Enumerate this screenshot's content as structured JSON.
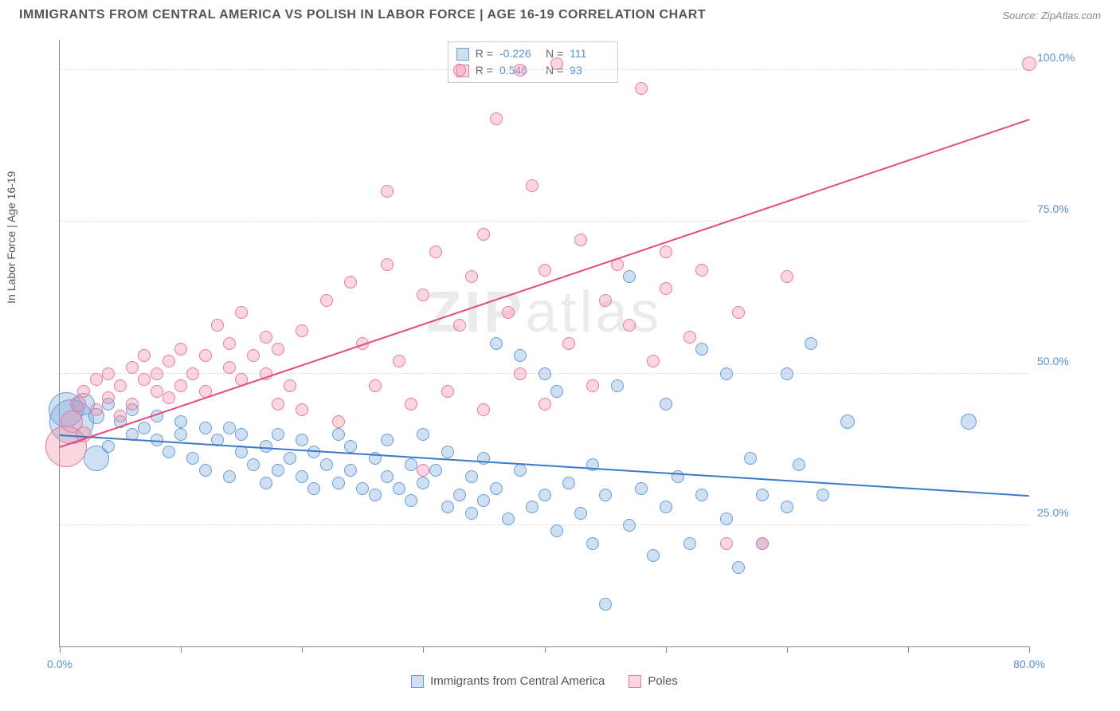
{
  "title": "IMMIGRANTS FROM CENTRAL AMERICA VS POLISH IN LABOR FORCE | AGE 16-19 CORRELATION CHART",
  "source": "Source: ZipAtlas.com",
  "watermark_prefix": "ZIP",
  "watermark_suffix": "atlas",
  "chart": {
    "type": "scatter",
    "ylabel": "In Labor Force | Age 16-19",
    "xlim": [
      0,
      80
    ],
    "ylim": [
      5,
      105
    ],
    "x_ticks": [
      0,
      10,
      20,
      30,
      40,
      50,
      60,
      70,
      80
    ],
    "x_tick_labels": {
      "0": "0.0%",
      "80": "80.0%"
    },
    "y_ticks": [
      25,
      50,
      75,
      100
    ],
    "y_tick_labels": [
      "25.0%",
      "50.0%",
      "75.0%",
      "100.0%"
    ],
    "grid_color": "#dddddd",
    "axis_color": "#888888",
    "background_color": "#ffffff",
    "series": [
      {
        "name": "Immigrants from Central America",
        "fill": "rgba(120,165,220,0.35)",
        "stroke": "#6a9bd8",
        "trend_color": "#3b78c9",
        "stats": {
          "R": "-0.226",
          "N": "111"
        },
        "trend": {
          "x1": 0,
          "y1": 40,
          "x2": 80,
          "y2": 30
        },
        "points": [
          {
            "x": 0.5,
            "y": 44,
            "r": 22
          },
          {
            "x": 1,
            "y": 42,
            "r": 28
          },
          {
            "x": 2,
            "y": 45,
            "r": 14
          },
          {
            "x": 3,
            "y": 36,
            "r": 16
          },
          {
            "x": 3,
            "y": 43,
            "r": 10
          },
          {
            "x": 4,
            "y": 45,
            "r": 8
          },
          {
            "x": 4,
            "y": 38,
            "r": 8
          },
          {
            "x": 5,
            "y": 42,
            "r": 8
          },
          {
            "x": 6,
            "y": 40,
            "r": 8
          },
          {
            "x": 6,
            "y": 44,
            "r": 8
          },
          {
            "x": 7,
            "y": 41,
            "r": 8
          },
          {
            "x": 8,
            "y": 39,
            "r": 8
          },
          {
            "x": 8,
            "y": 43,
            "r": 8
          },
          {
            "x": 9,
            "y": 37,
            "r": 8
          },
          {
            "x": 10,
            "y": 40,
            "r": 8
          },
          {
            "x": 10,
            "y": 42,
            "r": 8
          },
          {
            "x": 11,
            "y": 36,
            "r": 8
          },
          {
            "x": 12,
            "y": 41,
            "r": 8
          },
          {
            "x": 12,
            "y": 34,
            "r": 8
          },
          {
            "x": 13,
            "y": 39,
            "r": 8
          },
          {
            "x": 14,
            "y": 41,
            "r": 8
          },
          {
            "x": 14,
            "y": 33,
            "r": 8
          },
          {
            "x": 15,
            "y": 37,
            "r": 8
          },
          {
            "x": 15,
            "y": 40,
            "r": 8
          },
          {
            "x": 16,
            "y": 35,
            "r": 8
          },
          {
            "x": 17,
            "y": 38,
            "r": 8
          },
          {
            "x": 17,
            "y": 32,
            "r": 8
          },
          {
            "x": 18,
            "y": 40,
            "r": 8
          },
          {
            "x": 18,
            "y": 34,
            "r": 8
          },
          {
            "x": 19,
            "y": 36,
            "r": 8
          },
          {
            "x": 20,
            "y": 39,
            "r": 8
          },
          {
            "x": 20,
            "y": 33,
            "r": 8
          },
          {
            "x": 21,
            "y": 37,
            "r": 8
          },
          {
            "x": 21,
            "y": 31,
            "r": 8
          },
          {
            "x": 22,
            "y": 35,
            "r": 8
          },
          {
            "x": 23,
            "y": 40,
            "r": 8
          },
          {
            "x": 23,
            "y": 32,
            "r": 8
          },
          {
            "x": 24,
            "y": 34,
            "r": 8
          },
          {
            "x": 24,
            "y": 38,
            "r": 8
          },
          {
            "x": 25,
            "y": 31,
            "r": 8
          },
          {
            "x": 26,
            "y": 36,
            "r": 8
          },
          {
            "x": 26,
            "y": 30,
            "r": 8
          },
          {
            "x": 27,
            "y": 33,
            "r": 8
          },
          {
            "x": 27,
            "y": 39,
            "r": 8
          },
          {
            "x": 28,
            "y": 31,
            "r": 8
          },
          {
            "x": 29,
            "y": 35,
            "r": 8
          },
          {
            "x": 29,
            "y": 29,
            "r": 8
          },
          {
            "x": 30,
            "y": 40,
            "r": 8
          },
          {
            "x": 30,
            "y": 32,
            "r": 8
          },
          {
            "x": 31,
            "y": 34,
            "r": 8
          },
          {
            "x": 32,
            "y": 28,
            "r": 8
          },
          {
            "x": 32,
            "y": 37,
            "r": 8
          },
          {
            "x": 33,
            "y": 30,
            "r": 8
          },
          {
            "x": 34,
            "y": 33,
            "r": 8
          },
          {
            "x": 34,
            "y": 27,
            "r": 8
          },
          {
            "x": 35,
            "y": 36,
            "r": 8
          },
          {
            "x": 35,
            "y": 29,
            "r": 8
          },
          {
            "x": 36,
            "y": 55,
            "r": 8
          },
          {
            "x": 36,
            "y": 31,
            "r": 8
          },
          {
            "x": 37,
            "y": 26,
            "r": 8
          },
          {
            "x": 38,
            "y": 34,
            "r": 8
          },
          {
            "x": 38,
            "y": 53,
            "r": 8
          },
          {
            "x": 39,
            "y": 28,
            "r": 8
          },
          {
            "x": 40,
            "y": 30,
            "r": 8
          },
          {
            "x": 40,
            "y": 50,
            "r": 8
          },
          {
            "x": 41,
            "y": 24,
            "r": 8
          },
          {
            "x": 41,
            "y": 47,
            "r": 8
          },
          {
            "x": 42,
            "y": 32,
            "r": 8
          },
          {
            "x": 43,
            "y": 27,
            "r": 8
          },
          {
            "x": 44,
            "y": 35,
            "r": 8
          },
          {
            "x": 44,
            "y": 22,
            "r": 8
          },
          {
            "x": 45,
            "y": 30,
            "r": 8
          },
          {
            "x": 45,
            "y": 12,
            "r": 8
          },
          {
            "x": 46,
            "y": 48,
            "r": 8
          },
          {
            "x": 47,
            "y": 25,
            "r": 8
          },
          {
            "x": 47,
            "y": 66,
            "r": 8
          },
          {
            "x": 48,
            "y": 31,
            "r": 8
          },
          {
            "x": 49,
            "y": 20,
            "r": 8
          },
          {
            "x": 50,
            "y": 28,
            "r": 8
          },
          {
            "x": 50,
            "y": 45,
            "r": 8
          },
          {
            "x": 51,
            "y": 33,
            "r": 8
          },
          {
            "x": 52,
            "y": 22,
            "r": 8
          },
          {
            "x": 53,
            "y": 30,
            "r": 8
          },
          {
            "x": 53,
            "y": 54,
            "r": 8
          },
          {
            "x": 55,
            "y": 50,
            "r": 8
          },
          {
            "x": 55,
            "y": 26,
            "r": 8
          },
          {
            "x": 56,
            "y": 18,
            "r": 8
          },
          {
            "x": 57,
            "y": 36,
            "r": 8
          },
          {
            "x": 58,
            "y": 30,
            "r": 8
          },
          {
            "x": 58,
            "y": 22,
            "r": 8
          },
          {
            "x": 60,
            "y": 28,
            "r": 8
          },
          {
            "x": 60,
            "y": 50,
            "r": 8
          },
          {
            "x": 61,
            "y": 35,
            "r": 8
          },
          {
            "x": 62,
            "y": 55,
            "r": 8
          },
          {
            "x": 63,
            "y": 30,
            "r": 8
          },
          {
            "x": 65,
            "y": 42,
            "r": 9
          },
          {
            "x": 75,
            "y": 42,
            "r": 10
          }
        ]
      },
      {
        "name": "Poles",
        "fill": "rgba(240,140,165,0.35)",
        "stroke": "#e87a9a",
        "trend_color": "#e64b7a",
        "stats": {
          "R": "0.546",
          "N": "93"
        },
        "trend": {
          "x1": 0,
          "y1": 38,
          "x2": 80,
          "y2": 92
        },
        "points": [
          {
            "x": 0.5,
            "y": 38,
            "r": 26
          },
          {
            "x": 1,
            "y": 42,
            "r": 14
          },
          {
            "x": 1.5,
            "y": 45,
            "r": 10
          },
          {
            "x": 2,
            "y": 40,
            "r": 10
          },
          {
            "x": 2,
            "y": 47,
            "r": 8
          },
          {
            "x": 3,
            "y": 44,
            "r": 8
          },
          {
            "x": 3,
            "y": 49,
            "r": 8
          },
          {
            "x": 4,
            "y": 46,
            "r": 8
          },
          {
            "x": 4,
            "y": 50,
            "r": 8
          },
          {
            "x": 5,
            "y": 43,
            "r": 8
          },
          {
            "x": 5,
            "y": 48,
            "r": 8
          },
          {
            "x": 6,
            "y": 51,
            "r": 8
          },
          {
            "x": 6,
            "y": 45,
            "r": 8
          },
          {
            "x": 7,
            "y": 49,
            "r": 8
          },
          {
            "x": 7,
            "y": 53,
            "r": 8
          },
          {
            "x": 8,
            "y": 47,
            "r": 8
          },
          {
            "x": 8,
            "y": 50,
            "r": 8
          },
          {
            "x": 9,
            "y": 52,
            "r": 8
          },
          {
            "x": 9,
            "y": 46,
            "r": 8
          },
          {
            "x": 10,
            "y": 48,
            "r": 8
          },
          {
            "x": 10,
            "y": 54,
            "r": 8
          },
          {
            "x": 11,
            "y": 50,
            "r": 8
          },
          {
            "x": 12,
            "y": 53,
            "r": 8
          },
          {
            "x": 12,
            "y": 47,
            "r": 8
          },
          {
            "x": 13,
            "y": 58,
            "r": 8
          },
          {
            "x": 14,
            "y": 51,
            "r": 8
          },
          {
            "x": 14,
            "y": 55,
            "r": 8
          },
          {
            "x": 15,
            "y": 49,
            "r": 8
          },
          {
            "x": 15,
            "y": 60,
            "r": 8
          },
          {
            "x": 16,
            "y": 53,
            "r": 8
          },
          {
            "x": 17,
            "y": 56,
            "r": 8
          },
          {
            "x": 17,
            "y": 50,
            "r": 8
          },
          {
            "x": 18,
            "y": 45,
            "r": 8
          },
          {
            "x": 18,
            "y": 54,
            "r": 8
          },
          {
            "x": 19,
            "y": 48,
            "r": 8
          },
          {
            "x": 20,
            "y": 57,
            "r": 8
          },
          {
            "x": 20,
            "y": 44,
            "r": 8
          },
          {
            "x": 22,
            "y": 62,
            "r": 8
          },
          {
            "x": 23,
            "y": 42,
            "r": 8
          },
          {
            "x": 24,
            "y": 65,
            "r": 8
          },
          {
            "x": 25,
            "y": 55,
            "r": 8
          },
          {
            "x": 26,
            "y": 48,
            "r": 8
          },
          {
            "x": 27,
            "y": 68,
            "r": 8
          },
          {
            "x": 27,
            "y": 80,
            "r": 8
          },
          {
            "x": 28,
            "y": 52,
            "r": 8
          },
          {
            "x": 29,
            "y": 45,
            "r": 8
          },
          {
            "x": 30,
            "y": 63,
            "r": 8
          },
          {
            "x": 30,
            "y": 34,
            "r": 8
          },
          {
            "x": 31,
            "y": 70,
            "r": 8
          },
          {
            "x": 32,
            "y": 47,
            "r": 8
          },
          {
            "x": 33,
            "y": 58,
            "r": 8
          },
          {
            "x": 33,
            "y": 100,
            "r": 8
          },
          {
            "x": 34,
            "y": 66,
            "r": 8
          },
          {
            "x": 35,
            "y": 44,
            "r": 8
          },
          {
            "x": 35,
            "y": 73,
            "r": 8
          },
          {
            "x": 36,
            "y": 92,
            "r": 8
          },
          {
            "x": 37,
            "y": 60,
            "r": 8
          },
          {
            "x": 38,
            "y": 50,
            "r": 8
          },
          {
            "x": 38,
            "y": 100,
            "r": 8
          },
          {
            "x": 39,
            "y": 81,
            "r": 8
          },
          {
            "x": 40,
            "y": 45,
            "r": 8
          },
          {
            "x": 40,
            "y": 67,
            "r": 8
          },
          {
            "x": 41,
            "y": 101,
            "r": 8
          },
          {
            "x": 42,
            "y": 55,
            "r": 8
          },
          {
            "x": 43,
            "y": 72,
            "r": 8
          },
          {
            "x": 44,
            "y": 48,
            "r": 8
          },
          {
            "x": 45,
            "y": 62,
            "r": 8
          },
          {
            "x": 46,
            "y": 68,
            "r": 8
          },
          {
            "x": 47,
            "y": 58,
            "r": 8
          },
          {
            "x": 48,
            "y": 97,
            "r": 8
          },
          {
            "x": 49,
            "y": 52,
            "r": 8
          },
          {
            "x": 50,
            "y": 64,
            "r": 8
          },
          {
            "x": 50,
            "y": 70,
            "r": 8
          },
          {
            "x": 52,
            "y": 56,
            "r": 8
          },
          {
            "x": 53,
            "y": 67,
            "r": 8
          },
          {
            "x": 55,
            "y": 22,
            "r": 8
          },
          {
            "x": 56,
            "y": 60,
            "r": 8
          },
          {
            "x": 58,
            "y": 22,
            "r": 8
          },
          {
            "x": 60,
            "y": 66,
            "r": 8
          },
          {
            "x": 80,
            "y": 101,
            "r": 9
          }
        ]
      }
    ],
    "bottom_legend": [
      {
        "label": "Immigrants from Central America",
        "fill": "rgba(120,165,220,0.35)",
        "stroke": "#6a9bd8"
      },
      {
        "label": "Poles",
        "fill": "rgba(240,140,165,0.35)",
        "stroke": "#e87a9a"
      }
    ]
  }
}
